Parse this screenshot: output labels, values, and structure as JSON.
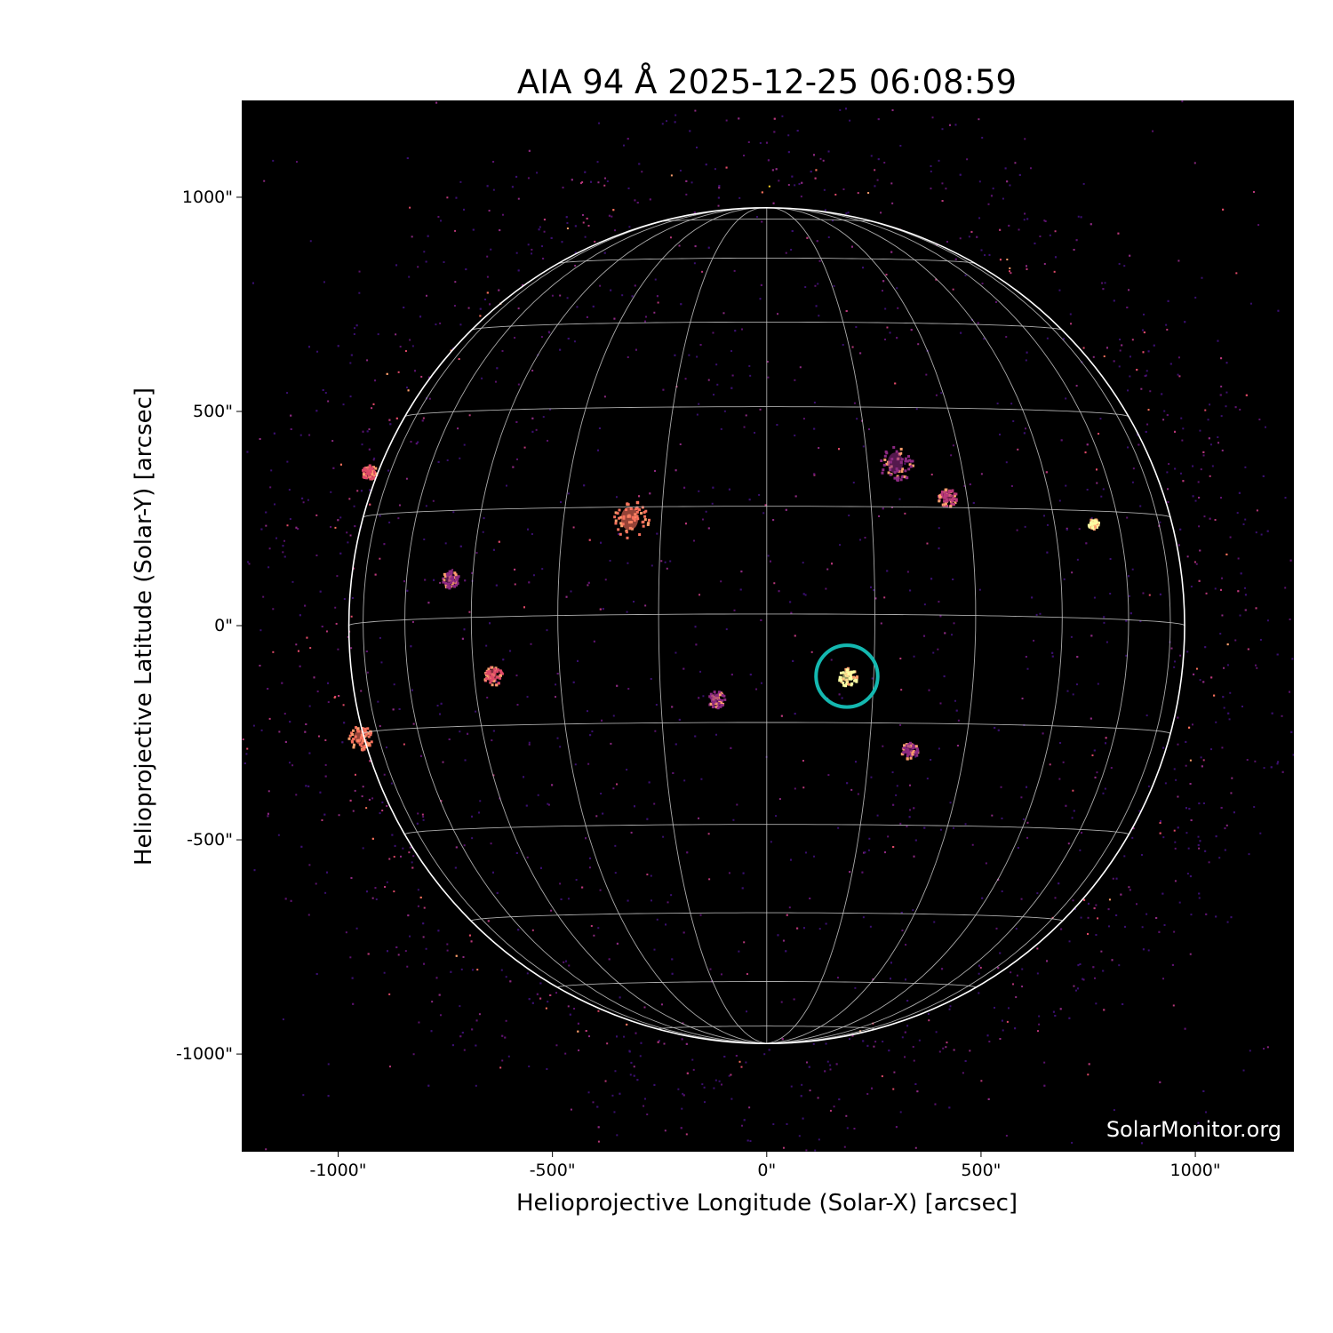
{
  "chart_data": {
    "type": "image",
    "title": "AIA 94 Å 2025-12-25 06:08:59",
    "xlabel": "Helioprojective Longitude (Solar-X) [arcsec]",
    "ylabel": "Helioprojective Latitude (Solar-Y) [arcsec]",
    "xlim": [
      -1225,
      1230
    ],
    "ylim": [
      -1228,
      1226
    ],
    "x_ticks": [
      -1000,
      -500,
      0,
      500,
      1000
    ],
    "x_tick_labels": [
      "-1000\"",
      "-500\"",
      "0\"",
      "500\"",
      "1000\""
    ],
    "y_ticks": [
      1000,
      500,
      0,
      -500,
      -1000
    ],
    "y_tick_labels": [
      "1000\"",
      "500\"",
      "0\"",
      "-500\"",
      "-1000\""
    ],
    "colormap": "inferno-like (black-purple-orange-yellow)",
    "solar_radius_arcsec": 975,
    "heliographic_grid_spacing_deg": 15,
    "grid": true,
    "highlight_circle": {
      "center_arcsec": [
        187,
        -118
      ],
      "radius_arcsec": 72,
      "color": "#14b8b0"
    },
    "watermark": "SolarMonitor.org"
  }
}
